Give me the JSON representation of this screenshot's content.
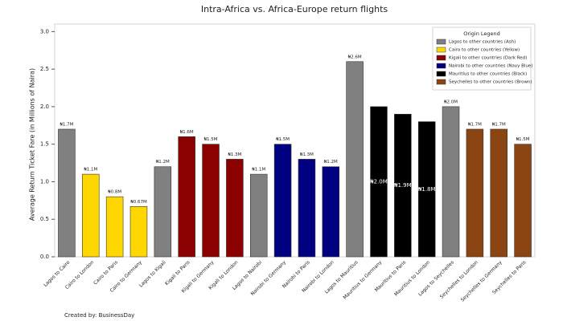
{
  "chart_data": {
    "type": "bar",
    "title": "Intra-Africa vs. Africa-Europe return flights",
    "y_label": "Average Return Ticket Fare (in Millions of Naira)",
    "footer": "Created by: BusinessDay",
    "categories": [
      "Lagos to Cairo",
      "Cairo to London",
      "Cairo to Paris",
      "Cairo to Germany",
      "Lagos to Kigali",
      "Kigali to Paris",
      "Kigali to Germany",
      "Kigali to London",
      "Lagos to Nairobi",
      "Nairobi to Germany",
      "Nairobi to Paris",
      "Nairobi to London",
      "Lagos to Mauritius",
      "Mauritius to Germany",
      "Mauritius to Paris",
      "Mauritius to London",
      "Lagos to Seychelles",
      "Seychelles to London",
      "Seychelles to Germany",
      "Seychelles to Paris"
    ],
    "values": [
      1.7,
      1.1,
      0.8,
      0.67,
      1.2,
      1.6,
      1.5,
      1.3,
      1.1,
      1.5,
      1.3,
      1.2,
      2.6,
      2.0,
      1.9,
      1.8,
      2.0,
      1.7,
      1.7,
      1.5
    ],
    "value_labels": [
      "₦1.7M",
      "₦1.1M",
      "₦0.8M",
      "₦0.67M",
      "₦1.2M",
      "₦1.6M",
      "₦1.5M",
      "₦1.3M",
      "₦1.1M",
      "₦1.5M",
      "₦1.3M",
      "₦1.2M",
      "₦2.6M",
      "₦2.0M",
      "₦1.9M",
      "₦1.8M",
      "₦2.0M",
      "₦1.7M",
      "₦1.7M",
      "₦1.5M"
    ],
    "colors": [
      "#808080",
      "#ffd700",
      "#ffd700",
      "#ffd700",
      "#808080",
      "#8b0000",
      "#8b0000",
      "#8b0000",
      "#808080",
      "#000080",
      "#000080",
      "#000080",
      "#808080",
      "#000000",
      "#000000",
      "#000000",
      "#808080",
      "#8b4513",
      "#8b4513",
      "#8b4513"
    ],
    "ylim": [
      0,
      3.1
    ],
    "yticks": [
      {
        "value": 0,
        "label": "0.0"
      },
      {
        "value": 0.5,
        "label": "0.5"
      },
      {
        "value": 1,
        "label": "1.0"
      },
      {
        "value": 1.5,
        "label": "1.5"
      },
      {
        "value": 2,
        "label": "2.0"
      },
      {
        "value": 2.5,
        "label": "2.5"
      },
      {
        "value": 3,
        "label": "3.0"
      }
    ],
    "legend": {
      "title": "Origin Legend",
      "position": "upper right",
      "entries": [
        {
          "label": "Lagos to other countries (Ash)",
          "color": "#808080"
        },
        {
          "label": "Cairo to other countries (Yellow)",
          "color": "#ffd700"
        },
        {
          "label": "Kigali to other countries (Dark Red)",
          "color": "#8b0000"
        },
        {
          "label": "Nairobi to other countries (Navy Blue)",
          "color": "#000080"
        },
        {
          "label": "Mauritius to other countries (Black)",
          "color": "#000000"
        },
        {
          "label": "Seychelles to other countries (Brown)",
          "color": "#8b4513"
        }
      ]
    }
  }
}
